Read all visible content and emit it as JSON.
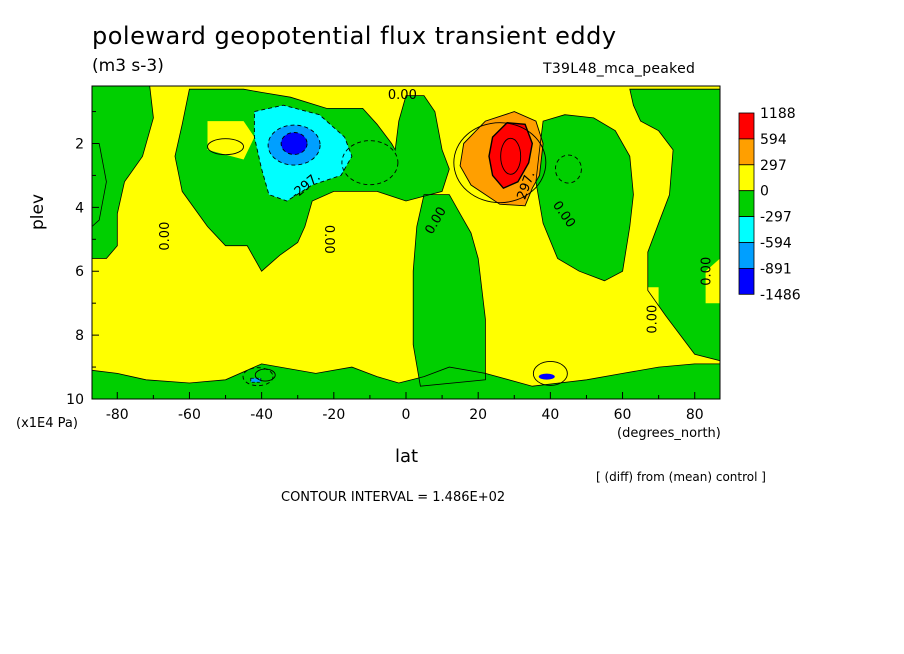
{
  "chart_data": {
    "type": "heatmap",
    "title": "poleward geopotential flux transient eddy",
    "units": "(m3 s-3)",
    "experiment": "T39L48_mca_peaked",
    "xlabel": "lat",
    "x_units": "(degrees_north)",
    "ylabel": "plev",
    "y_units": "(x1E4 Pa)",
    "xlim": [
      -87,
      87
    ],
    "ylim": [
      10,
      0.2
    ],
    "x_ticks": [
      -80,
      -60,
      -40,
      -20,
      0,
      20,
      40,
      60,
      80
    ],
    "y_ticks": [
      2,
      4,
      6,
      8,
      10
    ],
    "note": "[ (diff) from (mean) control ]",
    "contour_interval": "CONTOUR INTERVAL = 1.486E+02",
    "contour_labels": [
      "0.00",
      "-297.",
      "297."
    ],
    "legend": {
      "levels": [
        "1188",
        "594",
        "297",
        "0",
        "-297",
        "-594",
        "-891",
        "-1486"
      ],
      "colors": [
        "#ff0000",
        "#ff9f00",
        "#ffff00",
        "#00cf00",
        "#00ffff",
        "#009fff",
        "#0000ff"
      ]
    },
    "regions": [
      {
        "sign": "positive",
        "value_range": [
          0,
          297
        ],
        "lat_range": [
          -87,
          87
        ],
        "plev_range": [
          0.2,
          10
        ]
      },
      {
        "sign": "negative",
        "value_range": [
          -297,
          0
        ],
        "lat_range": [
          -87,
          -70
        ],
        "plev_range": [
          0.3,
          5.0
        ]
      },
      {
        "sign": "negative",
        "value_range": [
          -297,
          0
        ],
        "lat_range": [
          -60,
          -10
        ],
        "plev_range": [
          0.3,
          4.5
        ]
      },
      {
        "sign": "negative",
        "value_range": [
          -297,
          0
        ],
        "lat_range": [
          0,
          20
        ],
        "plev_range": [
          3.5,
          10
        ]
      },
      {
        "sign": "negative",
        "value_range": [
          -297,
          0
        ],
        "lat_range": [
          35,
          60
        ],
        "plev_range": [
          1.0,
          6.5
        ]
      },
      {
        "sign": "negative",
        "value_range": [
          -297,
          0
        ],
        "lat_range": [
          65,
          87
        ],
        "plev_range": [
          0.3,
          8.0
        ]
      },
      {
        "sign": "negative",
        "value_range": [
          -297,
          0
        ],
        "lat_range": [
          -87,
          87
        ],
        "plev_range": [
          9.0,
          10
        ]
      },
      {
        "sign": "negative",
        "value_range": [
          -1486,
          -891
        ],
        "center_lat": -30,
        "center_plev": 2.1
      },
      {
        "sign": "positive",
        "value_range": [
          594,
          1188
        ],
        "center_lat": 29,
        "center_plev": 2.4
      }
    ]
  }
}
